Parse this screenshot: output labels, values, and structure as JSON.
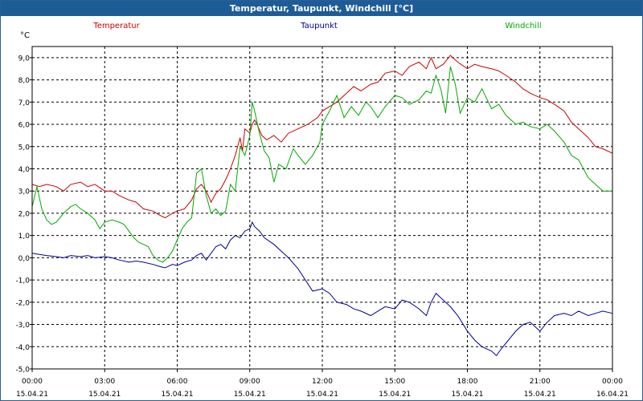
{
  "window": {
    "title": "Temperatur, Taupunkt, Windchill [°C]"
  },
  "chart_data": {
    "type": "line",
    "title": "Temperatur, Taupunkt, Windchill [°C]",
    "unit_label": "°C",
    "ylim": [
      -5,
      9.5
    ],
    "y_ticks": [
      "9,0",
      "8,0",
      "7,0",
      "6,0",
      "5,0",
      "4,0",
      "3,0",
      "2,0",
      "1,0",
      "0,0",
      "-1,0",
      "-2,0",
      "-3,0",
      "-4,0",
      "-5,0"
    ],
    "x_range_hours": [
      0,
      24
    ],
    "x_ticks": [
      {
        "time": "00:00",
        "date": "15.04.21"
      },
      {
        "time": "03:00",
        "date": "15.04.21"
      },
      {
        "time": "06:00",
        "date": "15.04.21"
      },
      {
        "time": "09:00",
        "date": "15.04.21"
      },
      {
        "time": "12:00",
        "date": "15.04.21"
      },
      {
        "time": "15:00",
        "date": "15.04.21"
      },
      {
        "time": "18:00",
        "date": "15.04.21"
      },
      {
        "time": "21:00",
        "date": "15.04.21"
      },
      {
        "time": "00:00",
        "date": "16.04.21"
      }
    ],
    "grid": true,
    "legend_position": "top",
    "series": [
      {
        "name": "Temperatur",
        "color": "#cc0000",
        "points": [
          [
            0,
            3.3
          ],
          [
            0.3,
            3.2
          ],
          [
            0.6,
            3.3
          ],
          [
            1,
            3.2
          ],
          [
            1.3,
            3.0
          ],
          [
            1.6,
            3.3
          ],
          [
            2,
            3.4
          ],
          [
            2.3,
            3.2
          ],
          [
            2.6,
            3.3
          ],
          [
            3,
            3.0
          ],
          [
            3.3,
            3.0
          ],
          [
            3.6,
            2.8
          ],
          [
            4,
            2.6
          ],
          [
            4.3,
            2.5
          ],
          [
            4.6,
            2.2
          ],
          [
            5,
            2.1
          ],
          [
            5.3,
            1.9
          ],
          [
            5.5,
            1.8
          ],
          [
            5.8,
            2.0
          ],
          [
            6,
            2.1
          ],
          [
            6.3,
            2.2
          ],
          [
            6.6,
            2.6
          ],
          [
            6.8,
            3.1
          ],
          [
            7,
            3.3
          ],
          [
            7.2,
            3.0
          ],
          [
            7.4,
            2.5
          ],
          [
            7.6,
            2.9
          ],
          [
            7.8,
            3.1
          ],
          [
            8,
            3.5
          ],
          [
            8.2,
            4.0
          ],
          [
            8.4,
            4.6
          ],
          [
            8.6,
            5.4
          ],
          [
            8.7,
            4.8
          ],
          [
            8.8,
            5.8
          ],
          [
            9,
            5.6
          ],
          [
            9.1,
            6.0
          ],
          [
            9.2,
            6.2
          ],
          [
            9.3,
            6.0
          ],
          [
            9.5,
            5.5
          ],
          [
            9.7,
            5.3
          ],
          [
            10,
            5.5
          ],
          [
            10.3,
            5.2
          ],
          [
            10.6,
            5.6
          ],
          [
            11,
            5.8
          ],
          [
            11.4,
            6.0
          ],
          [
            11.8,
            6.3
          ],
          [
            12,
            6.6
          ],
          [
            12.3,
            6.8
          ],
          [
            12.6,
            7.0
          ],
          [
            13,
            7.4
          ],
          [
            13.3,
            7.7
          ],
          [
            13.6,
            7.5
          ],
          [
            14,
            7.8
          ],
          [
            14.3,
            7.9
          ],
          [
            14.6,
            8.3
          ],
          [
            15,
            8.4
          ],
          [
            15.3,
            8.2
          ],
          [
            15.6,
            8.6
          ],
          [
            16,
            8.8
          ],
          [
            16.3,
            8.5
          ],
          [
            16.5,
            9.0
          ],
          [
            16.7,
            8.5
          ],
          [
            17,
            8.7
          ],
          [
            17.3,
            9.1
          ],
          [
            17.6,
            8.8
          ],
          [
            18,
            8.5
          ],
          [
            18.3,
            8.7
          ],
          [
            18.6,
            8.6
          ],
          [
            19,
            8.5
          ],
          [
            19.3,
            8.4
          ],
          [
            19.6,
            8.2
          ],
          [
            20,
            7.9
          ],
          [
            20.3,
            7.6
          ],
          [
            20.6,
            7.4
          ],
          [
            21,
            7.2
          ],
          [
            21.3,
            7.1
          ],
          [
            21.6,
            6.9
          ],
          [
            22,
            6.6
          ],
          [
            22.3,
            6.1
          ],
          [
            22.6,
            5.8
          ],
          [
            23,
            5.4
          ],
          [
            23.3,
            5.0
          ],
          [
            23.6,
            4.9
          ],
          [
            24,
            4.7
          ]
        ]
      },
      {
        "name": "Taupunkt",
        "color": "#000099",
        "points": [
          [
            0,
            0.2
          ],
          [
            0.3,
            0.15
          ],
          [
            0.6,
            0.1
          ],
          [
            1,
            0.05
          ],
          [
            1.3,
            0.0
          ],
          [
            1.6,
            0.1
          ],
          [
            2,
            0.05
          ],
          [
            2.3,
            0.1
          ],
          [
            2.6,
            0.0
          ],
          [
            3,
            0.05
          ],
          [
            3.3,
            0.0
          ],
          [
            3.6,
            -0.1
          ],
          [
            4,
            -0.2
          ],
          [
            4.3,
            -0.15
          ],
          [
            4.6,
            -0.2
          ],
          [
            5,
            -0.3
          ],
          [
            5.3,
            -0.4
          ],
          [
            5.5,
            -0.45
          ],
          [
            5.8,
            -0.3
          ],
          [
            6,
            -0.35
          ],
          [
            6.3,
            -0.2
          ],
          [
            6.6,
            -0.1
          ],
          [
            6.8,
            0.1
          ],
          [
            7,
            0.2
          ],
          [
            7.2,
            -0.1
          ],
          [
            7.4,
            0.2
          ],
          [
            7.6,
            0.5
          ],
          [
            7.8,
            0.6
          ],
          [
            8,
            0.4
          ],
          [
            8.2,
            0.8
          ],
          [
            8.4,
            1.0
          ],
          [
            8.6,
            0.9
          ],
          [
            8.8,
            1.2
          ],
          [
            9,
            1.3
          ],
          [
            9.1,
            1.6
          ],
          [
            9.2,
            1.4
          ],
          [
            9.4,
            1.2
          ],
          [
            9.6,
            0.9
          ],
          [
            10,
            0.6
          ],
          [
            10.3,
            0.3
          ],
          [
            10.6,
            0.0
          ],
          [
            11,
            -0.5
          ],
          [
            11.3,
            -1.0
          ],
          [
            11.6,
            -1.5
          ],
          [
            12,
            -1.4
          ],
          [
            12.3,
            -1.6
          ],
          [
            12.6,
            -2.0
          ],
          [
            13,
            -2.1
          ],
          [
            13.3,
            -2.3
          ],
          [
            13.6,
            -2.4
          ],
          [
            14,
            -2.6
          ],
          [
            14.3,
            -2.4
          ],
          [
            14.6,
            -2.2
          ],
          [
            15,
            -2.3
          ],
          [
            15.3,
            -1.9
          ],
          [
            15.6,
            -2.0
          ],
          [
            16,
            -2.3
          ],
          [
            16.3,
            -2.6
          ],
          [
            16.5,
            -2.0
          ],
          [
            16.7,
            -1.6
          ],
          [
            17,
            -1.9
          ],
          [
            17.3,
            -2.2
          ],
          [
            17.6,
            -2.6
          ],
          [
            18,
            -3.3
          ],
          [
            18.3,
            -3.7
          ],
          [
            18.6,
            -4.0
          ],
          [
            19,
            -4.2
          ],
          [
            19.2,
            -4.4
          ],
          [
            19.4,
            -4.1
          ],
          [
            19.7,
            -3.7
          ],
          [
            20,
            -3.3
          ],
          [
            20.3,
            -3.0
          ],
          [
            20.6,
            -2.9
          ],
          [
            21,
            -3.3
          ],
          [
            21.3,
            -2.9
          ],
          [
            21.6,
            -2.6
          ],
          [
            22,
            -2.5
          ],
          [
            22.3,
            -2.6
          ],
          [
            22.6,
            -2.4
          ],
          [
            23,
            -2.6
          ],
          [
            23.3,
            -2.5
          ],
          [
            23.6,
            -2.4
          ],
          [
            24,
            -2.5
          ]
        ]
      },
      {
        "name": "Windchill",
        "color": "#00aa00",
        "points": [
          [
            0,
            2.3
          ],
          [
            0.2,
            3.2
          ],
          [
            0.4,
            2.2
          ],
          [
            0.6,
            1.7
          ],
          [
            0.8,
            1.5
          ],
          [
            1,
            1.6
          ],
          [
            1.3,
            2.0
          ],
          [
            1.6,
            2.3
          ],
          [
            1.8,
            2.4
          ],
          [
            2,
            2.2
          ],
          [
            2.3,
            2.0
          ],
          [
            2.6,
            1.7
          ],
          [
            2.8,
            1.3
          ],
          [
            3,
            1.6
          ],
          [
            3.3,
            1.7
          ],
          [
            3.6,
            1.6
          ],
          [
            3.8,
            1.5
          ],
          [
            4,
            1.2
          ],
          [
            4.2,
            0.9
          ],
          [
            4.4,
            0.7
          ],
          [
            4.6,
            0.6
          ],
          [
            4.8,
            0.5
          ],
          [
            5,
            0.1
          ],
          [
            5.2,
            -0.1
          ],
          [
            5.4,
            -0.2
          ],
          [
            5.6,
            0.0
          ],
          [
            5.8,
            0.3
          ],
          [
            6,
            0.8
          ],
          [
            6.2,
            1.3
          ],
          [
            6.4,
            1.6
          ],
          [
            6.6,
            1.8
          ],
          [
            6.8,
            3.8
          ],
          [
            7,
            4.0
          ],
          [
            7.2,
            2.8
          ],
          [
            7.4,
            2.0
          ],
          [
            7.6,
            2.2
          ],
          [
            7.8,
            1.9
          ],
          [
            8,
            2.1
          ],
          [
            8.2,
            3.3
          ],
          [
            8.4,
            3.0
          ],
          [
            8.6,
            5.0
          ],
          [
            8.8,
            4.6
          ],
          [
            9,
            5.5
          ],
          [
            9.1,
            7.0
          ],
          [
            9.2,
            6.6
          ],
          [
            9.4,
            5.6
          ],
          [
            9.6,
            4.8
          ],
          [
            9.8,
            4.5
          ],
          [
            10,
            3.4
          ],
          [
            10.2,
            4.2
          ],
          [
            10.5,
            4.0
          ],
          [
            10.8,
            4.9
          ],
          [
            11,
            4.6
          ],
          [
            11.3,
            4.2
          ],
          [
            11.6,
            4.6
          ],
          [
            11.9,
            5.2
          ],
          [
            12,
            6.0
          ],
          [
            12.3,
            6.6
          ],
          [
            12.6,
            7.3
          ],
          [
            12.9,
            6.3
          ],
          [
            13.2,
            6.8
          ],
          [
            13.5,
            6.4
          ],
          [
            13.8,
            7.0
          ],
          [
            14,
            6.8
          ],
          [
            14.3,
            6.3
          ],
          [
            14.6,
            6.8
          ],
          [
            15,
            7.3
          ],
          [
            15.3,
            7.2
          ],
          [
            15.6,
            6.9
          ],
          [
            16,
            7.1
          ],
          [
            16.3,
            7.5
          ],
          [
            16.5,
            7.4
          ],
          [
            16.7,
            8.2
          ],
          [
            16.9,
            7.6
          ],
          [
            17.1,
            6.5
          ],
          [
            17.3,
            8.6
          ],
          [
            17.5,
            7.8
          ],
          [
            17.7,
            6.5
          ],
          [
            18,
            7.2
          ],
          [
            18.3,
            7.0
          ],
          [
            18.6,
            7.6
          ],
          [
            19,
            6.7
          ],
          [
            19.3,
            6.9
          ],
          [
            19.6,
            6.4
          ],
          [
            20,
            6.0
          ],
          [
            20.3,
            6.1
          ],
          [
            20.6,
            5.9
          ],
          [
            21,
            5.8
          ],
          [
            21.3,
            6.0
          ],
          [
            21.6,
            5.7
          ],
          [
            22,
            5.2
          ],
          [
            22.3,
            4.6
          ],
          [
            22.6,
            4.4
          ],
          [
            23,
            3.6
          ],
          [
            23.3,
            3.3
          ],
          [
            23.6,
            3.0
          ],
          [
            24,
            3.0
          ]
        ]
      }
    ]
  }
}
